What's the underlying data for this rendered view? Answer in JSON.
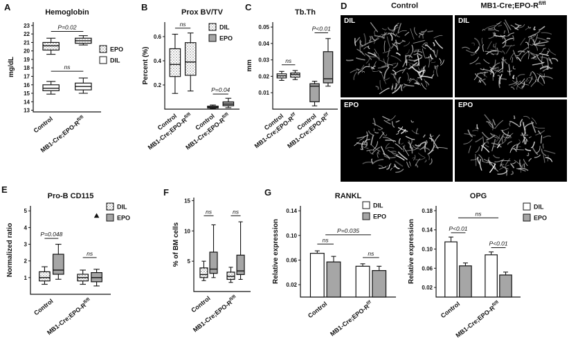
{
  "colors": {
    "epo_gray": "#a6a6a6",
    "stroke": "#111111",
    "stipple_dot": "#333333"
  },
  "panel_letters": {
    "A": "A",
    "B": "B",
    "C": "C",
    "D": "D",
    "E": "E",
    "F": "F",
    "G": "G"
  },
  "panel_d": {
    "col_headers": [
      {
        "text": "Control",
        "sup": ""
      },
      {
        "text": "MB1-Cre;EPO-R",
        "sup": "fl/fl"
      }
    ],
    "cells": [
      {
        "label": "DIL"
      },
      {
        "label": "DIL"
      },
      {
        "label": "EPO"
      },
      {
        "label": "EPO"
      }
    ]
  },
  "chart_data": [
    {
      "id": "A",
      "type": "box",
      "title": "Hemoglobin",
      "ylabel": "mg/dL",
      "ylim": [
        12.8,
        23.4
      ],
      "yticks": [
        13,
        14,
        15,
        16,
        17,
        18,
        19,
        20,
        21,
        22,
        23
      ],
      "ytick_labels": [
        "13",
        "14",
        "15",
        "16",
        "17",
        "18",
        "19",
        "20",
        "21",
        "22",
        "23"
      ],
      "xlim": [
        0.45,
        2.55
      ],
      "box_width": 0.5,
      "items": [
        {
          "x": 1,
          "group": "Control",
          "series": "EPO",
          "fill": "stipple",
          "whisker_low": 19.6,
          "q1": 20.1,
          "median": 20.6,
          "q3": 21.0,
          "whisker_high": 21.5
        },
        {
          "x": 1,
          "group": "Control",
          "series": "DIL",
          "fill": "white",
          "whisker_low": 14.9,
          "q1": 15.3,
          "median": 15.6,
          "q3": 16.0,
          "whisker_high": 16.4
        },
        {
          "x": 2,
          "group": "MB1-Cre;EPO-R",
          "series": "EPO",
          "fill": "stipple",
          "whisker_low": 20.7,
          "q1": 20.9,
          "median": 21.2,
          "q3": 21.5,
          "whisker_high": 21.8
        },
        {
          "x": 2,
          "group": "MB1-Cre;EPO-R",
          "series": "DIL",
          "fill": "white",
          "whisker_low": 15.0,
          "q1": 15.4,
          "median": 15.8,
          "q3": 16.2,
          "whisker_high": 16.8
        }
      ],
      "xlabels": [
        {
          "x": 1,
          "text": "Control",
          "sup": ""
        },
        {
          "x": 2,
          "text": "MB1-Cre;EPO-R",
          "sup": "fl/fl"
        }
      ],
      "annotations": [
        {
          "x1": 1,
          "x2": 2,
          "y": 22.3,
          "label": "P=0.02"
        },
        {
          "x1": 1,
          "x2": 2,
          "y": 17.6,
          "label": "ns"
        }
      ],
      "legend": {
        "pos": [
          136,
          64
        ],
        "entries": [
          {
            "label": "EPO",
            "fill": "stipple"
          },
          {
            "label": "DIL",
            "fill": "white"
          }
        ]
      }
    },
    {
      "id": "B",
      "type": "box",
      "title": "Prox BV/TV",
      "ylabel": "Percent (%)",
      "ylim": [
        0,
        0.72
      ],
      "yticks": [
        0.2,
        0.4,
        0.6
      ],
      "ytick_labels": [
        "0.2",
        "0.4",
        "0.6"
      ],
      "xlim": [
        0.4,
        4.75
      ],
      "box_width": 0.62,
      "items": [
        {
          "x": 1.0,
          "group": "Control",
          "series": "DIL",
          "fill": "stipple",
          "whisker_low": 0.13,
          "q1": 0.27,
          "median": 0.37,
          "q3": 0.5,
          "whisker_high": 0.62
        },
        {
          "x": 1.9,
          "group": "MB1-Cre;EPO-R",
          "series": "DIL",
          "fill": "stipple",
          "whisker_low": 0.15,
          "q1": 0.28,
          "median": 0.39,
          "q3": 0.55,
          "whisker_high": 0.63
        },
        {
          "x": 3.2,
          "group": "Control",
          "series": "EPO",
          "fill": "gray",
          "whisker_low": 0.004,
          "q1": 0.01,
          "median": 0.016,
          "q3": 0.025,
          "whisker_high": 0.034
        },
        {
          "x": 4.1,
          "group": "MB1-Cre;EPO-R",
          "series": "EPO",
          "fill": "gray",
          "whisker_low": 0.012,
          "q1": 0.028,
          "median": 0.042,
          "q3": 0.06,
          "whisker_high": 0.09
        }
      ],
      "xlabels": [
        {
          "x": 1.0,
          "text": "Control",
          "sup": ""
        },
        {
          "x": 1.9,
          "text": "MB1-Cre;EPO-R",
          "sup": "fl/fl"
        },
        {
          "x": 3.2,
          "text": "Control",
          "sup": ""
        },
        {
          "x": 4.1,
          "text": "MB1-Cre;EPO-R",
          "sup": "fl/fl"
        }
      ],
      "annotations": [
        {
          "x1": 1.0,
          "x2": 1.9,
          "y": 0.67,
          "label": "ns"
        },
        {
          "x1": 3.2,
          "x2": 4.1,
          "y": 0.125,
          "label": "P=0.04"
        }
      ],
      "legend": {
        "pos": [
          100,
          32
        ],
        "entries": [
          {
            "label": "DIL",
            "fill": "stipple"
          },
          {
            "label": "EPO",
            "fill": "gray"
          }
        ]
      }
    },
    {
      "id": "C",
      "type": "box",
      "title": "Tb.Th",
      "ylabel": "mm",
      "ylim": [
        0,
        0.053
      ],
      "yticks": [
        0.01,
        0.02,
        0.03,
        0.04,
        0.05
      ],
      "ytick_labels": [
        "0.01",
        "0.02",
        "0.03",
        "0.04",
        "0.05"
      ],
      "xlim": [
        0.4,
        4.75
      ],
      "box_width": 0.62,
      "items": [
        {
          "x": 1.0,
          "group": "Control",
          "series": "DIL",
          "fill": "stipple",
          "whisker_low": 0.0175,
          "q1": 0.019,
          "median": 0.0203,
          "q3": 0.0215,
          "whisker_high": 0.023
        },
        {
          "x": 1.9,
          "group": "MB1-Cre;EPO-R",
          "series": "DIL",
          "fill": "stipple",
          "whisker_low": 0.018,
          "q1": 0.0195,
          "median": 0.021,
          "q3": 0.022,
          "whisker_high": 0.0235
        },
        {
          "x": 3.2,
          "group": "Control",
          "series": "EPO",
          "fill": "gray",
          "whisker_low": 0.002,
          "q1": 0.0045,
          "median": 0.014,
          "q3": 0.0155,
          "whisker_high": 0.017
        },
        {
          "x": 4.1,
          "group": "MB1-Cre;EPO-R",
          "series": "EPO",
          "fill": "gray",
          "whisker_low": 0.014,
          "q1": 0.016,
          "median": 0.0185,
          "q3": 0.035,
          "whisker_high": 0.043
        }
      ],
      "xlabels": [
        {
          "x": 1.0,
          "text": "Control",
          "sup": ""
        },
        {
          "x": 1.9,
          "text": "MB1-Cre;EPO-R",
          "sup": "f/f"
        },
        {
          "x": 3.2,
          "text": "Control",
          "sup": ""
        },
        {
          "x": 4.1,
          "text": "MB1-Cre;EPO-R",
          "sup": "f/f"
        }
      ],
      "annotations": [
        {
          "x1": 1.0,
          "x2": 1.9,
          "y": 0.027,
          "label": "ns"
        },
        {
          "x1": 3.2,
          "x2": 4.1,
          "y": 0.0465,
          "label": "P<0.01"
        }
      ]
    },
    {
      "id": "E",
      "type": "box",
      "title": "Pro-B CD115",
      "ylabel": "Normalized ratio",
      "ylim": [
        0,
        5.3
      ],
      "yticks": [
        1,
        2,
        3,
        4,
        5
      ],
      "ytick_labels": [
        "1",
        "2",
        "3",
        "4",
        "5"
      ],
      "xlim": [
        0.45,
        2.55
      ],
      "box_width": 0.28,
      "items": [
        {
          "x": 0.82,
          "group": "Control",
          "series": "DIL",
          "fill": "stipple",
          "whisker_low": 0.6,
          "q1": 0.8,
          "median": 1.0,
          "q3": 1.35,
          "whisker_high": 1.65
        },
        {
          "x": 1.18,
          "group": "Control",
          "series": "EPO",
          "fill": "gray",
          "whisker_low": 0.9,
          "q1": 1.2,
          "median": 1.45,
          "q3": 2.4,
          "whisker_high": 3.0
        },
        {
          "x": 1.82,
          "group": "MB1-Cre;EPO-R",
          "series": "DIL",
          "fill": "stipple",
          "whisker_low": 0.6,
          "q1": 0.8,
          "median": 1.0,
          "q3": 1.2,
          "whisker_high": 1.45
        },
        {
          "x": 2.18,
          "group": "MB1-Cre;EPO-R",
          "series": "EPO",
          "fill": "gray",
          "whisker_low": 0.5,
          "q1": 0.75,
          "median": 1.0,
          "q3": 1.3,
          "whisker_high": 1.5
        }
      ],
      "outliers": [
        {
          "x": 2.18,
          "y": 4.7,
          "marker": "triangle"
        }
      ],
      "xlabels": [
        {
          "x": 1,
          "text": "Control",
          "sup": ""
        },
        {
          "x": 2,
          "text": "MB1-Cre;EPO-R",
          "sup": "fl/fl"
        }
      ],
      "annotations": [
        {
          "x1": 0.82,
          "x2": 1.18,
          "y": 3.35,
          "label": "P=0.048"
        },
        {
          "x1": 1.82,
          "x2": 2.18,
          "y": 2.2,
          "label": "ns"
        }
      ],
      "legend": {
        "pos": [
          148,
          28
        ],
        "entries": [
          {
            "label": "DIL",
            "fill": "stipple"
          },
          {
            "label": "EPO",
            "fill": "gray"
          }
        ]
      }
    },
    {
      "id": "F",
      "type": "box",
      "title": "",
      "ylabel": "% of BM cells",
      "ylim": [
        0,
        15.5
      ],
      "yticks": [
        5,
        10,
        15
      ],
      "ytick_labels": [
        "5",
        "10",
        "15"
      ],
      "xlim": [
        0.45,
        2.55
      ],
      "box_width": 0.28,
      "items": [
        {
          "x": 0.82,
          "group": "Control",
          "series": "DIL",
          "fill": "stipple",
          "whisker_low": 1.8,
          "q1": 2.3,
          "median": 2.8,
          "q3": 3.9,
          "whisker_high": 5.0
        },
        {
          "x": 1.18,
          "group": "Control",
          "series": "EPO",
          "fill": "gray",
          "whisker_low": 2.3,
          "q1": 3.0,
          "median": 3.7,
          "q3": 6.5,
          "whisker_high": 11.0
        },
        {
          "x": 1.82,
          "group": "MB1-Cre;EPO-R",
          "series": "DIL",
          "fill": "stipple",
          "whisker_low": 1.5,
          "q1": 2.0,
          "median": 2.5,
          "q3": 3.2,
          "whisker_high": 4.0
        },
        {
          "x": 2.18,
          "group": "MB1-Cre;EPO-R",
          "series": "EPO",
          "fill": "gray",
          "whisker_low": 2.0,
          "q1": 2.8,
          "median": 3.4,
          "q3": 6.0,
          "whisker_high": 11.5
        }
      ],
      "xlabels": [
        {
          "x": 1,
          "text": "Control",
          "sup": ""
        },
        {
          "x": 2,
          "text": "MB1-Cre;EPO-R",
          "sup": "fl/fl"
        }
      ],
      "annotations": [
        {
          "x1": 0.82,
          "x2": 1.18,
          "y": 12.5,
          "label": "ns"
        },
        {
          "x1": 1.82,
          "x2": 2.18,
          "y": 12.5,
          "label": "ns"
        }
      ]
    },
    {
      "id": "G1",
      "type": "bar",
      "title": "RANKL",
      "ylabel": "Relative expression",
      "ylim": [
        0,
        0.148
      ],
      "yticks": [
        0.02,
        0.06,
        0.1,
        0.14
      ],
      "ytick_labels": [
        "0.02",
        "0.06",
        "0.10",
        "0.14"
      ],
      "xlim": [
        0.45,
        2.55
      ],
      "box_width": 0.3,
      "items": [
        {
          "x": 0.82,
          "group": "Control",
          "series": "DIL",
          "fill": "white",
          "value": 0.071,
          "error": 0.004
        },
        {
          "x": 1.18,
          "group": "Control",
          "series": "EPO",
          "fill": "gray",
          "value": 0.057,
          "error": 0.009
        },
        {
          "x": 1.82,
          "group": "MB1-Cre;EPO-R",
          "series": "DIL",
          "fill": "white",
          "value": 0.05,
          "error": 0.004
        },
        {
          "x": 2.18,
          "group": "MB1-Cre;EPO-R",
          "series": "EPO",
          "fill": "gray",
          "value": 0.043,
          "error": 0.007
        }
      ],
      "xlabels": [
        {
          "x": 1,
          "text": "Control",
          "sup": ""
        },
        {
          "x": 2,
          "text": "MB1-Cre;EPO-R",
          "sup": "f/f"
        }
      ],
      "annotations": [
        {
          "x1": 1,
          "x2": 2,
          "y": 0.101,
          "label": "P=0.035"
        },
        {
          "x1": 0.82,
          "x2": 1.18,
          "y": 0.086,
          "label": "ns"
        },
        {
          "x1": 1.82,
          "x2": 2.18,
          "y": 0.064,
          "label": "ns"
        }
      ],
      "legend": {
        "pos": [
          134,
          26
        ],
        "entries": [
          {
            "label": "DIL",
            "fill": "white"
          },
          {
            "label": "EPO",
            "fill": "gray"
          }
        ]
      }
    },
    {
      "id": "G2",
      "type": "bar",
      "title": "OPG",
      "ylabel": "Relative expression",
      "ylim": [
        0,
        0.19
      ],
      "yticks": [
        0.02,
        0.06,
        0.1,
        0.14,
        0.18
      ],
      "ytick_labels": [
        "0.02",
        "0.06",
        "0.10",
        "0.14",
        "0.18"
      ],
      "xlim": [
        0.45,
        2.55
      ],
      "box_width": 0.3,
      "items": [
        {
          "x": 0.82,
          "group": "Control",
          "series": "DIL",
          "fill": "white",
          "value": 0.115,
          "error": 0.01
        },
        {
          "x": 1.18,
          "group": "Control",
          "series": "EPO",
          "fill": "gray",
          "value": 0.065,
          "error": 0.006
        },
        {
          "x": 1.82,
          "group": "MB1-Cre;EPO-R",
          "series": "DIL",
          "fill": "white",
          "value": 0.088,
          "error": 0.006
        },
        {
          "x": 2.18,
          "group": "MB1-Cre;EPO-R",
          "series": "EPO",
          "fill": "gray",
          "value": 0.046,
          "error": 0.006
        }
      ],
      "xlabels": [
        {
          "x": 1,
          "text": "Control",
          "sup": ""
        },
        {
          "x": 2,
          "text": "MB1-Cre;EPO-R",
          "sup": "fl/fl"
        }
      ],
      "annotations": [
        {
          "x1": 1,
          "x2": 2,
          "y": 0.165,
          "label": "ns"
        },
        {
          "x1": 0.82,
          "x2": 1.18,
          "y": 0.134,
          "label": "P<0.01"
        },
        {
          "x1": 1.82,
          "x2": 2.18,
          "y": 0.103,
          "label": "P<0.01"
        }
      ],
      "legend": {
        "pos": [
          170,
          28
        ],
        "entries": [
          {
            "label": "DIL",
            "fill": "white"
          },
          {
            "label": "EPO",
            "fill": "gray"
          }
        ]
      }
    }
  ]
}
